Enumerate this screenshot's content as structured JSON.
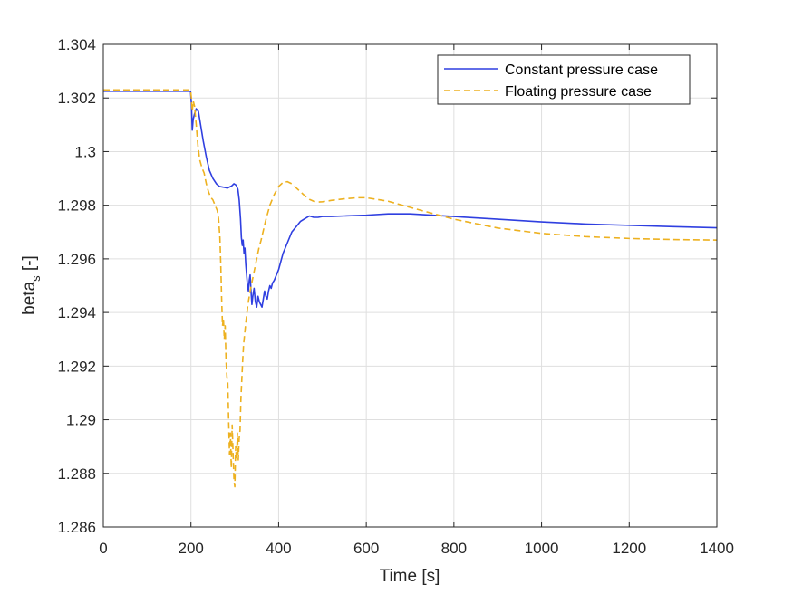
{
  "chart_data": {
    "type": "line",
    "title": "",
    "xlabel": "Time [s]",
    "ylabel_main": "beta",
    "ylabel_sub": "s",
    "ylabel_unit": " [-]",
    "xlim": [
      0,
      1400
    ],
    "ylim": [
      1.286,
      1.304
    ],
    "xticks": [
      0,
      200,
      400,
      600,
      800,
      1000,
      1200,
      1400
    ],
    "xtick_labels": [
      "0",
      "200",
      "400",
      "600",
      "800",
      "1000",
      "1200",
      "1400"
    ],
    "yticks": [
      1.286,
      1.288,
      1.29,
      1.292,
      1.294,
      1.296,
      1.298,
      1.3,
      1.302,
      1.304
    ],
    "ytick_labels": [
      "1.286",
      "1.288",
      "1.29",
      "1.292",
      "1.294",
      "1.296",
      "1.298",
      "1.3",
      "1.302",
      "1.304"
    ],
    "grid": true,
    "legend_position": "top-right",
    "series": [
      {
        "name": "Constant pressure case",
        "color": "#2f3fe0",
        "style": "solid",
        "x": [
          0,
          199,
          201,
          203,
          205,
          208,
          212,
          217,
          222,
          228,
          235,
          242,
          250,
          258,
          265,
          272,
          278,
          283,
          288,
          293,
          298,
          303,
          307,
          310,
          313,
          315,
          317,
          319,
          321,
          323,
          325,
          327,
          329,
          331,
          333,
          335,
          337,
          339,
          341,
          344,
          347,
          350,
          353,
          356,
          359,
          362,
          365,
          368,
          371,
          374,
          377,
          380,
          383,
          386,
          390,
          395,
          400,
          410,
          420,
          430,
          440,
          450,
          460,
          470,
          480,
          490,
          500,
          520,
          550,
          600,
          650,
          700,
          800,
          900,
          1000,
          1100,
          1200,
          1300,
          1400
        ],
        "y": [
          1.30225,
          1.30225,
          1.3018,
          1.3008,
          1.3012,
          1.3014,
          1.3016,
          1.3015,
          1.301,
          1.3004,
          1.2998,
          1.2993,
          1.299,
          1.2988,
          1.2987,
          1.29868,
          1.29866,
          1.29864,
          1.29868,
          1.29872,
          1.2988,
          1.29875,
          1.2986,
          1.2982,
          1.2975,
          1.2968,
          1.2965,
          1.2967,
          1.2962,
          1.2964,
          1.2958,
          1.2954,
          1.295,
          1.2948,
          1.2952,
          1.2954,
          1.2948,
          1.2943,
          1.2946,
          1.2949,
          1.2944,
          1.2942,
          1.2946,
          1.2944,
          1.2943,
          1.2942,
          1.2945,
          1.2948,
          1.2946,
          1.2945,
          1.2948,
          1.295,
          1.2949,
          1.2951,
          1.2952,
          1.2954,
          1.2956,
          1.2962,
          1.2966,
          1.297,
          1.2972,
          1.2974,
          1.2975,
          1.2976,
          1.29755,
          1.29755,
          1.29758,
          1.29758,
          1.2976,
          1.29763,
          1.29768,
          1.29768,
          1.29758,
          1.29748,
          1.29738,
          1.2973,
          1.29725,
          1.2972,
          1.29716
        ]
      },
      {
        "name": "Floating pressure case",
        "color": "#edb120",
        "style": "dashed",
        "x": [
          0,
          199,
          201,
          203,
          205,
          208,
          212,
          216,
          220,
          225,
          230,
          235,
          240,
          245,
          250,
          255,
          260,
          263,
          266,
          268,
          270,
          272,
          274,
          276,
          278,
          280,
          282,
          284,
          286,
          288,
          290,
          292,
          294,
          296,
          298,
          300,
          302,
          304,
          306,
          308,
          310,
          312,
          314,
          316,
          318,
          320,
          325,
          330,
          335,
          340,
          345,
          350,
          355,
          360,
          370,
          380,
          390,
          400,
          410,
          420,
          430,
          440,
          450,
          460,
          470,
          480,
          490,
          500,
          520,
          550,
          580,
          600,
          650,
          700,
          800,
          900,
          1000,
          1100,
          1200,
          1300,
          1400
        ],
        "y": [
          1.3023,
          1.3023,
          1.302,
          1.3015,
          1.3019,
          1.3017,
          1.301,
          1.3002,
          1.2997,
          1.2994,
          1.2992,
          1.2988,
          1.2985,
          1.2983,
          1.2982,
          1.298,
          1.2978,
          1.2975,
          1.2968,
          1.2958,
          1.2945,
          1.2935,
          1.2938,
          1.293,
          1.2935,
          1.2922,
          1.2916,
          1.2914,
          1.29,
          1.2887,
          1.2895,
          1.2882,
          1.2898,
          1.2888,
          1.2878,
          1.2875,
          1.289,
          1.2885,
          1.2895,
          1.2885,
          1.2893,
          1.2896,
          1.2908,
          1.2915,
          1.2922,
          1.2928,
          1.2936,
          1.2943,
          1.2948,
          1.2952,
          1.2956,
          1.296,
          1.2964,
          1.2967,
          1.2974,
          1.298,
          1.2984,
          1.2987,
          1.29885,
          1.29888,
          1.2988,
          1.29865,
          1.2985,
          1.29835,
          1.29822,
          1.29815,
          1.29812,
          1.29813,
          1.29818,
          1.29824,
          1.29828,
          1.29828,
          1.29815,
          1.29792,
          1.29748,
          1.29715,
          1.29695,
          1.29683,
          1.29676,
          1.29672,
          1.2967
        ]
      }
    ]
  }
}
